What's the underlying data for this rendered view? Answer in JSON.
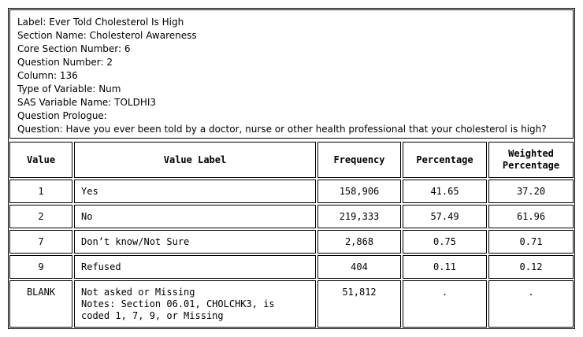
{
  "info": {
    "label": "Label: Ever Told Cholesterol Is High",
    "section_name": "Section Name: Cholesterol Awareness",
    "core_section_number": "Core Section Number: 6",
    "question_number": "Question Number: 2",
    "column": "Column: 136",
    "type_of_variable": "Type of Variable: Num",
    "sas_variable_name": "SAS Variable Name: TOLDHI3",
    "question_prologue": "Question Prologue:",
    "question": "Question:  Have you ever been told by a doctor, nurse or other health professional that your cholesterol is high?"
  },
  "table": {
    "headers": {
      "value": "Value",
      "value_label": "Value Label",
      "frequency": "Frequency",
      "percentage": "Percentage",
      "weighted_line1": "Weighted",
      "weighted_line2": "Percentage"
    },
    "rows": [
      {
        "value": "1",
        "label": "Yes",
        "frequency": "158,906",
        "percentage": "41.65",
        "weighted": "37.20"
      },
      {
        "value": "2",
        "label": "No",
        "frequency": "219,333",
        "percentage": "57.49",
        "weighted": "61.96"
      },
      {
        "value": "7",
        "label": "Don’t know/Not Sure",
        "frequency": "2,868",
        "percentage": "0.75",
        "weighted": "0.71"
      },
      {
        "value": "9",
        "label": "Refused",
        "frequency": "404",
        "percentage": "0.11",
        "weighted": "0.12"
      },
      {
        "value": "BLANK",
        "label_line1": "Not asked or Missing",
        "label_line2": "Notes: Section 06.01, CHOLCHK3, is",
        "label_line3": "coded 1, 7, 9, or Missing",
        "frequency": "51,812",
        "percentage": ".",
        "weighted": "."
      }
    ]
  }
}
